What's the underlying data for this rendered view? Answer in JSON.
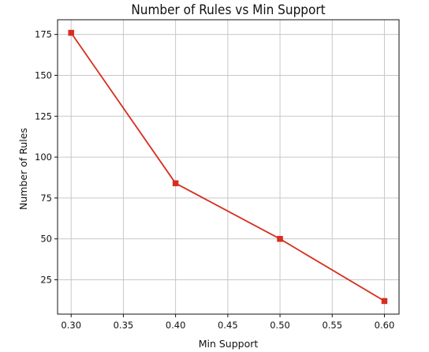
{
  "chart_data": {
    "type": "line",
    "title": "Number of Rules vs Min Support",
    "xlabel": "Min Support",
    "ylabel": "Number of Rules",
    "x": [
      0.3,
      0.4,
      0.5,
      0.6
    ],
    "series": [
      {
        "values": [
          176,
          84,
          50,
          12
        ],
        "color": "#d62e1f",
        "marker": "square"
      }
    ],
    "xlim": [
      0.287,
      0.614
    ],
    "ylim": [
      4,
      184
    ],
    "xticks": [
      0.3,
      0.35,
      0.4,
      0.45,
      0.5,
      0.55,
      0.6
    ],
    "xtick_labels": [
      "0.30",
      "0.35",
      "0.40",
      "0.45",
      "0.50",
      "0.55",
      "0.60"
    ],
    "yticks": [
      25,
      50,
      75,
      100,
      125,
      150,
      175
    ],
    "ytick_labels": [
      "25",
      "50",
      "75",
      "100",
      "125",
      "150",
      "175"
    ],
    "grid": true,
    "legend": false,
    "colors": {
      "line": "#d62e1f",
      "grid": "#c8c8c8",
      "axis": "#111111"
    }
  }
}
